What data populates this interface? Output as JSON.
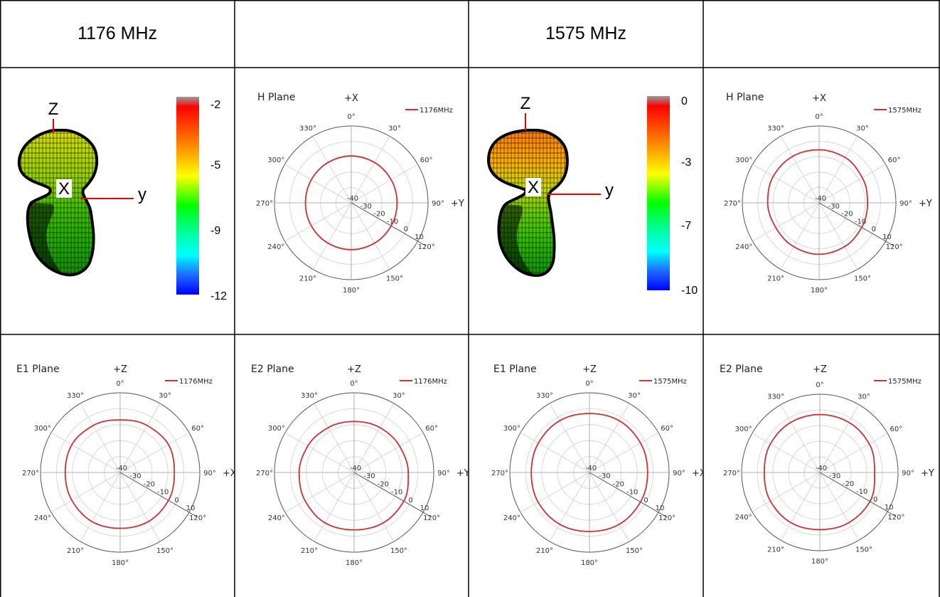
{
  "headers": {
    "col1": "1176 MHz",
    "col2": "",
    "col3": "1575 MHz",
    "col4": ""
  },
  "colors": {
    "trace": "#d32f2f",
    "grid": "#cfcfcf",
    "ring": "#555555"
  },
  "plot3d": [
    {
      "id": "3d-1176",
      "axis_labels": {
        "z": "Z",
        "x": "X",
        "y": "y"
      },
      "scale_labels": [
        "-2",
        "-5",
        "-9",
        "-12"
      ],
      "scale_range": [
        -12,
        -2
      ]
    },
    {
      "id": "3d-1575",
      "axis_labels": {
        "z": "Z",
        "x": "X",
        "y": "y"
      },
      "scale_labels": [
        "0",
        "-3",
        "-7",
        "-10"
      ],
      "scale_range": [
        -10,
        0
      ]
    }
  ],
  "chart_data": [
    {
      "type": "polar",
      "title": "H Plane",
      "axis_top": "+X",
      "axis_right": "+Y",
      "legend": "1176MHz",
      "legend_position": "top-right",
      "radial_labels": [
        "-40",
        "-30",
        "-20",
        "-10",
        "0",
        "10"
      ],
      "rlim": [
        -40,
        10
      ],
      "angle_labels": [
        "0°",
        "30°",
        "60°",
        "90°",
        "120°",
        "150°",
        "180°",
        "210°",
        "240°",
        "270°",
        "300°",
        "330°"
      ],
      "series": [
        {
          "name": "1176MHz",
          "angles": [
            0,
            30,
            60,
            90,
            120,
            150,
            180,
            210,
            240,
            270,
            300,
            330,
            360
          ],
          "values": [
            -9.5,
            -9.7,
            -10,
            -10.2,
            -10,
            -9.7,
            -9.5,
            -9.7,
            -10,
            -10.2,
            -10,
            -9.7,
            -9.5
          ]
        }
      ]
    },
    {
      "type": "polar",
      "title": "H Plane",
      "axis_top": "+X",
      "axis_right": "+Y",
      "legend": "1575MHz",
      "legend_position": "top-right",
      "radial_labels": [
        "-40",
        "-30",
        "-20",
        "-10",
        "0",
        "10"
      ],
      "rlim": [
        -40,
        10
      ],
      "angle_labels": [
        "0°",
        "30°",
        "60°",
        "90°",
        "120°",
        "150°",
        "180°",
        "210°",
        "240°",
        "270°",
        "300°",
        "330°"
      ],
      "series": [
        {
          "name": "1575MHz",
          "angles": [
            0,
            30,
            60,
            90,
            120,
            150,
            180,
            210,
            240,
            270,
            300,
            330,
            360
          ],
          "values": [
            -5.5,
            -6,
            -7.5,
            -8.5,
            -8,
            -7,
            -6.5,
            -7,
            -7.5,
            -6.5,
            -5.5,
            -5.2,
            -5.5
          ]
        }
      ]
    },
    {
      "type": "polar",
      "title": "E1 Plane",
      "axis_top": "+Z",
      "axis_right": "+X",
      "legend": "1176MHz",
      "legend_position": "top-right",
      "radial_labels": [
        "-40",
        "-30",
        "-20",
        "-10",
        "0",
        "10"
      ],
      "rlim": [
        -40,
        10
      ],
      "angle_labels": [
        "0°",
        "30°",
        "60°",
        "90°",
        "120°",
        "150°",
        "180°",
        "210°",
        "240°",
        "270°",
        "300°",
        "330°"
      ],
      "series": [
        {
          "name": "1176MHz",
          "angles": [
            0,
            30,
            60,
            90,
            120,
            150,
            180,
            210,
            240,
            270,
            300,
            330,
            360
          ],
          "values": [
            -7,
            -6,
            -5,
            -6,
            -5,
            -4.5,
            -5,
            -4.5,
            -5,
            -5.5,
            -5,
            -6,
            -7
          ]
        }
      ]
    },
    {
      "type": "polar",
      "title": "E2 Plane",
      "axis_top": "+Z",
      "axis_right": "+Y",
      "legend": "1176MHz",
      "legend_position": "top-right",
      "radial_labels": [
        "-40",
        "-30",
        "-20",
        "-10",
        "0",
        "10"
      ],
      "rlim": [
        -40,
        10
      ],
      "angle_labels": [
        "0°",
        "30°",
        "60°",
        "90°",
        "120°",
        "150°",
        "180°",
        "210°",
        "240°",
        "270°",
        "300°",
        "330°"
      ],
      "series": [
        {
          "name": "1176MHz",
          "angles": [
            0,
            30,
            60,
            90,
            120,
            150,
            180,
            210,
            240,
            270,
            300,
            330,
            360
          ],
          "values": [
            -8,
            -7.5,
            -7,
            -6,
            -4,
            -3.5,
            -4,
            -3.5,
            -4.5,
            -5.5,
            -6.5,
            -7.5,
            -8
          ]
        }
      ]
    },
    {
      "type": "polar",
      "title": "E1 Plane",
      "axis_top": "+Z",
      "axis_right": "+X",
      "legend": "1575MHz",
      "legend_position": "top-right",
      "radial_labels": [
        "-40",
        "-30",
        "-20",
        "-10",
        "0",
        "10"
      ],
      "rlim": [
        -40,
        10
      ],
      "angle_labels": [
        "0°",
        "30°",
        "60°",
        "90°",
        "120°",
        "150°",
        "180°",
        "210°",
        "240°",
        "270°",
        "300°",
        "330°"
      ],
      "series": [
        {
          "name": "1575MHz",
          "angles": [
            0,
            30,
            60,
            90,
            120,
            150,
            180,
            210,
            240,
            270,
            300,
            330,
            360
          ],
          "values": [
            -3,
            -2.5,
            -3,
            -3.5,
            -3,
            -2.5,
            -3,
            -2.5,
            -2.8,
            -3.5,
            -3,
            -2.5,
            -3
          ]
        }
      ]
    },
    {
      "type": "polar",
      "title": "E2 Plane",
      "axis_top": "+Z",
      "axis_right": "+Y",
      "legend": "1575MHz",
      "legend_position": "top-right",
      "radial_labels": [
        "-40",
        "-30",
        "-20",
        "-10",
        "0",
        "10"
      ],
      "rlim": [
        -40,
        10
      ],
      "angle_labels": [
        "0°",
        "30°",
        "60°",
        "90°",
        "120°",
        "150°",
        "180°",
        "210°",
        "240°",
        "270°",
        "300°",
        "330°"
      ],
      "series": [
        {
          "name": "1575MHz",
          "angles": [
            0,
            30,
            60,
            90,
            120,
            150,
            180,
            210,
            240,
            270,
            300,
            330,
            360
          ],
          "values": [
            -3,
            -3,
            -3.5,
            -5,
            -3,
            -3,
            -3.5,
            -3,
            -3.5,
            -4.5,
            -3.5,
            -3,
            -3
          ]
        }
      ]
    }
  ]
}
